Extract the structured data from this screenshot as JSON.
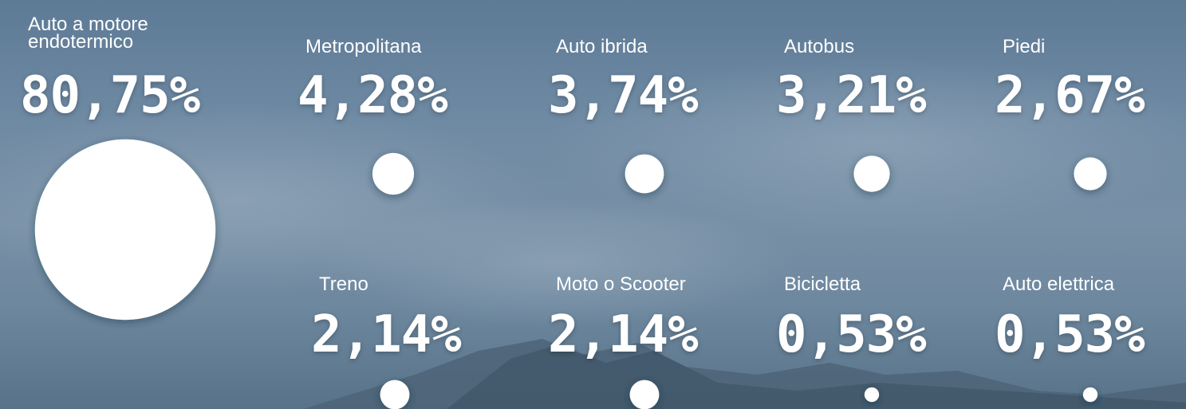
{
  "chart_data": {
    "type": "bubble",
    "categories": [
      "Auto a motore endotermico",
      "Metropolitana",
      "Auto ibrida",
      "Autobus",
      "Piedi",
      "Treno",
      "Moto o Scooter",
      "Bicicletta",
      "Auto elettrica"
    ],
    "values": [
      80.75,
      4.28,
      3.74,
      3.21,
      2.67,
      2.14,
      2.14,
      0.53,
      0.53
    ],
    "value_labels": [
      "80,75%",
      "4,28%",
      "3,74%",
      "3,21%",
      "2,67%",
      "2,14%",
      "2,14%",
      "0,53%",
      "0,53%"
    ],
    "color": "#ffffff"
  }
}
